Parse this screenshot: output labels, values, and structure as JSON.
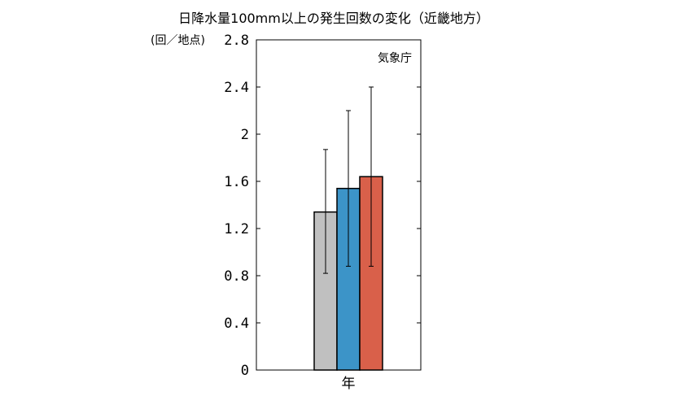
{
  "chart_data": {
    "type": "bar",
    "title": "日降水量100mm以上の発生回数の変化（近畿地方）",
    "ylabel": "(回／地点)",
    "source": "気象庁",
    "categories": [
      "年"
    ],
    "ylim": [
      0,
      2.8
    ],
    "yticks": [
      "0",
      "0.4",
      "0.8",
      "1.2",
      "1.6",
      "2",
      "2.4",
      "2.8"
    ],
    "yticks_values": [
      0,
      0.4,
      0.8,
      1.2,
      1.6,
      2.0,
      2.4,
      2.8
    ],
    "grid": false,
    "series": [
      {
        "values": [
          1.34
        ],
        "error_low": [
          0.82
        ],
        "error_high": [
          1.87
        ],
        "color": "#c0c0c0"
      },
      {
        "values": [
          1.54
        ],
        "error_low": [
          0.88
        ],
        "error_high": [
          2.2
        ],
        "color": "#3c94c8"
      },
      {
        "values": [
          1.64
        ],
        "error_low": [
          0.88
        ],
        "error_high": [
          2.4
        ],
        "color": "#d9604a"
      }
    ]
  }
}
